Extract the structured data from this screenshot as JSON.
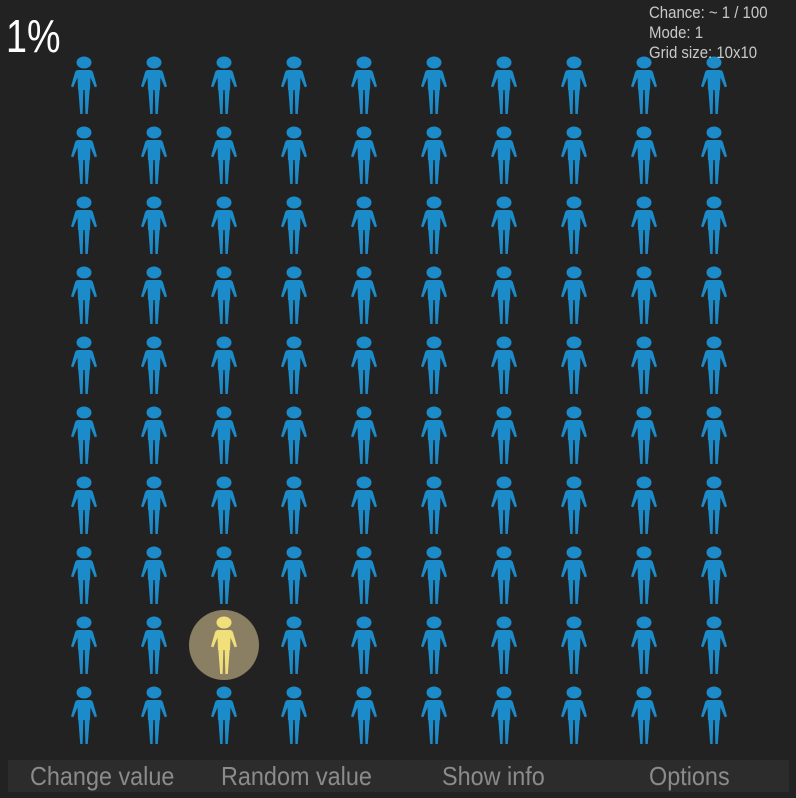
{
  "header": {
    "percent": "1%"
  },
  "info": {
    "chance": "Chance: ~ 1 / 100",
    "mode": "Mode: 1",
    "grid_size": "Grid size: 10x10"
  },
  "grid": {
    "rows": 10,
    "cols": 10,
    "highlighted": [
      {
        "row": 9,
        "col": 3
      }
    ],
    "colors": {
      "person": "#1c8bc9",
      "highlight_person": "#f1e07a",
      "highlight_circle": "#8a7f62"
    },
    "icon": "person-icon"
  },
  "bottom_bar": {
    "change_value": "Change value",
    "random_value": "Random value",
    "show_info": "Show info",
    "options": "Options"
  }
}
